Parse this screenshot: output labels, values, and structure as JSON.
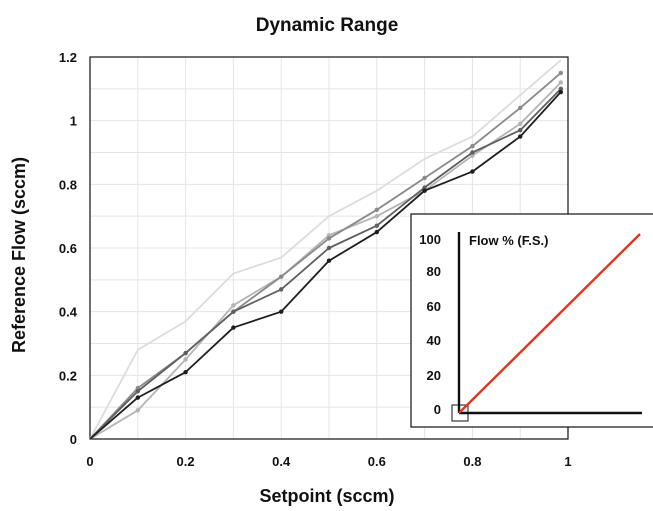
{
  "chart_data": [
    {
      "type": "line",
      "title": "Dynamic Range",
      "xlabel": "Setpoint (sccm)",
      "ylabel": "Reference Flow (sccm)",
      "xlim": [
        0,
        1
      ],
      "ylim": [
        0,
        1.2
      ],
      "xticks": [
        "0",
        "0.2",
        "0.4",
        "0.6",
        "0.8",
        "1"
      ],
      "yticks": [
        "0",
        "0.2",
        "0.4",
        "0.6",
        "0.8",
        "1",
        "1.2"
      ],
      "grid": true,
      "x": [
        0,
        0.1,
        0.2,
        0.3,
        0.4,
        0.5,
        0.6,
        0.7,
        0.8,
        0.9,
        0.985
      ],
      "series": [
        {
          "color": "#dcdcdc",
          "markers": false,
          "values": [
            0,
            0.28,
            0.37,
            0.52,
            0.57,
            0.7,
            0.78,
            0.88,
            0.95,
            1.08,
            1.19
          ]
        },
        {
          "color": "#b4b4b4",
          "markers": true,
          "values": [
            0,
            0.09,
            0.25,
            0.42,
            0.51,
            0.64,
            0.7,
            0.78,
            0.89,
            0.99,
            1.12
          ]
        },
        {
          "color": "#8a8a8a",
          "markers": true,
          "values": [
            0,
            0.16,
            0.27,
            0.4,
            0.51,
            0.63,
            0.72,
            0.82,
            0.92,
            1.04,
            1.15
          ]
        },
        {
          "color": "#5f5f5f",
          "markers": true,
          "values": [
            0,
            0.15,
            0.27,
            0.4,
            0.47,
            0.6,
            0.67,
            0.79,
            0.9,
            0.97,
            1.1
          ]
        },
        {
          "color": "#1e1e1e",
          "markers": true,
          "values": [
            0,
            0.13,
            0.21,
            0.35,
            0.4,
            0.56,
            0.65,
            0.78,
            0.84,
            0.95,
            1.09
          ]
        }
      ]
    },
    {
      "type": "line",
      "title": "",
      "ylabel": "Flow % (F.S.)",
      "xlabel": "",
      "ylim": [
        0,
        100
      ],
      "yticks": [
        "100",
        "80",
        "60",
        "40",
        "20",
        "0"
      ],
      "x": [
        0,
        100
      ],
      "series": [
        {
          "color": "#e2341d",
          "values": [
            0,
            100
          ]
        }
      ]
    }
  ]
}
